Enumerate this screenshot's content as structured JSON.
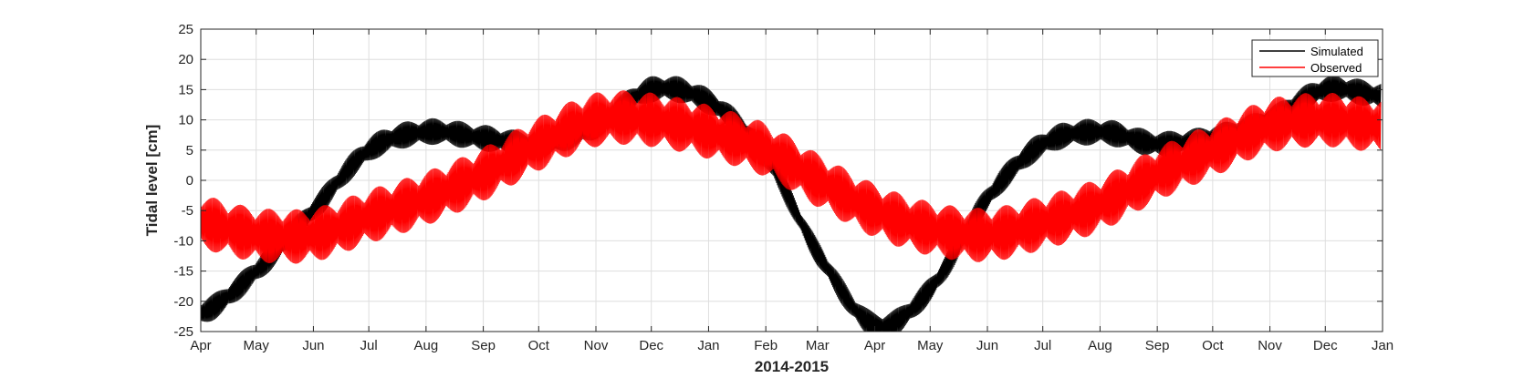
{
  "chart_data": {
    "type": "line",
    "xlabel": "2014-2015",
    "ylabel": "Tidal level [cm]",
    "x_range": [
      "2014-04-01",
      "2015-12-31"
    ],
    "ylim": [
      -25,
      25
    ],
    "yticks": [
      25,
      20,
      15,
      10,
      5,
      0,
      -5,
      -10,
      -15,
      -20,
      -25
    ],
    "xtick_labels": [
      "Apr",
      "May",
      "Jun",
      "Jul",
      "Aug",
      "Sep",
      "Oct",
      "Nov",
      "Dec",
      "Jan",
      "Feb",
      "Mar",
      "Apr",
      "May",
      "Jun",
      "Jul",
      "Aug",
      "Sep",
      "Oct",
      "Nov",
      "Dec",
      "Jan"
    ],
    "xtick_dates": [
      "2014-04-01",
      "2014-05-01",
      "2014-06-01",
      "2014-07-01",
      "2014-08-01",
      "2014-09-01",
      "2014-10-01",
      "2014-11-01",
      "2014-12-01",
      "2015-01-01",
      "2015-02-01",
      "2015-03-01",
      "2015-04-01",
      "2015-05-01",
      "2015-06-01",
      "2015-07-01",
      "2015-08-01",
      "2015-09-01",
      "2015-10-01",
      "2015-11-01",
      "2015-12-01",
      "2016-01-01"
    ],
    "grid": true,
    "legend_position": "top-right",
    "series": [
      {
        "name": "Simulated",
        "color": "#000000",
        "envelope_note": "dense tidal oscillation; mean curve with approx ±2 cm amplitude",
        "x": [
          "2014-04-01",
          "2014-05-01",
          "2014-06-01",
          "2014-07-01",
          "2014-08-01",
          "2014-09-01",
          "2014-10-01",
          "2014-11-01",
          "2014-12-01",
          "2015-01-01",
          "2015-02-01",
          "2015-03-01",
          "2015-04-01",
          "2015-05-01",
          "2015-06-01",
          "2015-07-01",
          "2015-08-01",
          "2015-09-01",
          "2015-10-01",
          "2015-11-01",
          "2015-12-01",
          "2015-12-31"
        ],
        "y": [
          -22,
          -15,
          -5,
          5,
          8,
          7,
          6,
          9,
          15,
          13,
          4,
          -12,
          -24,
          -18,
          -3,
          6,
          8,
          6,
          7,
          10,
          15,
          14
        ]
      },
      {
        "name": "Observed",
        "color": "#ff0000",
        "envelope_note": "dense tidal oscillation; mean curve with approx ±5 cm amplitude",
        "x": [
          "2014-04-01",
          "2014-05-01",
          "2014-06-01",
          "2014-07-01",
          "2014-08-01",
          "2014-09-01",
          "2014-10-01",
          "2014-11-01",
          "2014-12-01",
          "2015-01-01",
          "2015-02-01",
          "2015-03-01",
          "2015-04-01",
          "2015-05-01",
          "2015-06-01",
          "2015-07-01",
          "2015-08-01",
          "2015-09-01",
          "2015-10-01",
          "2015-11-01",
          "2015-12-01",
          "2015-12-31"
        ],
        "y": [
          -7,
          -9,
          -9,
          -6,
          -3,
          1,
          6,
          10,
          10,
          8,
          5,
          0,
          -5,
          -8,
          -9,
          -7,
          -4,
          1,
          5,
          9,
          10,
          9
        ]
      }
    ]
  }
}
